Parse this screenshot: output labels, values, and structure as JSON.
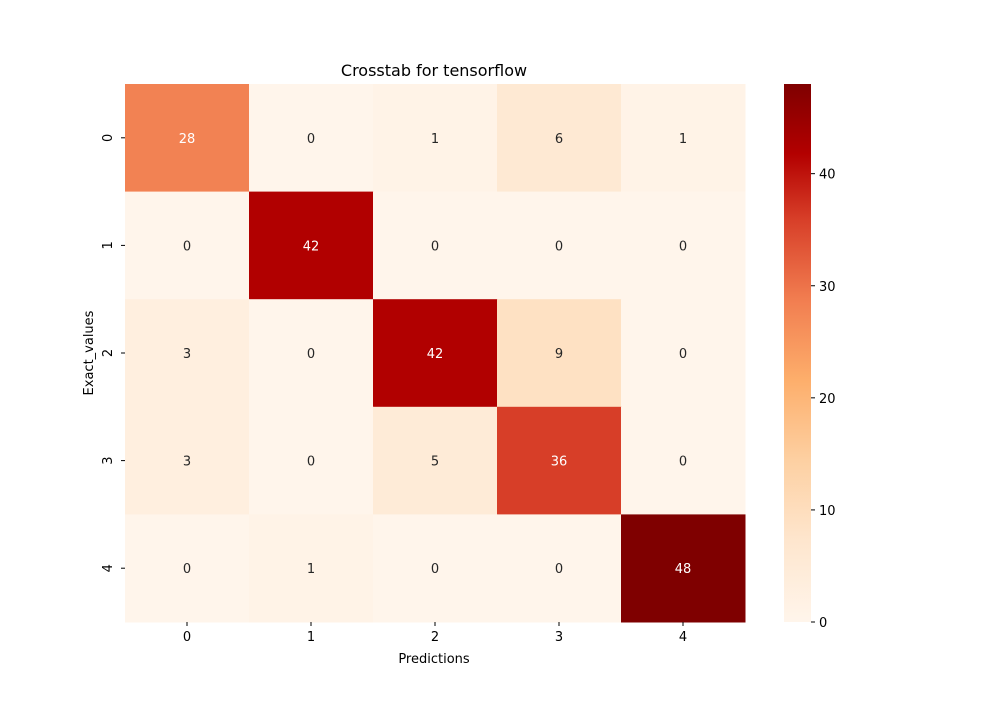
{
  "chart_data": {
    "type": "heatmap",
    "title": "Crosstab for tensorflow",
    "xlabel": "Predictions",
    "ylabel": "Exact_values",
    "x_categories": [
      "0",
      "1",
      "2",
      "3",
      "4"
    ],
    "y_categories": [
      "0",
      "1",
      "2",
      "3",
      "4"
    ],
    "values": [
      [
        28,
        0,
        1,
        6,
        1
      ],
      [
        0,
        42,
        0,
        0,
        0
      ],
      [
        3,
        0,
        42,
        9,
        0
      ],
      [
        3,
        0,
        5,
        36,
        0
      ],
      [
        0,
        1,
        0,
        0,
        48
      ]
    ],
    "colorbar": {
      "min": 0,
      "max": 48,
      "ticks": [
        0,
        10,
        20,
        30,
        40
      ],
      "colormap": "OrRd-like (white-cream to dark red)"
    },
    "grid": false,
    "legend": "colorbar-right"
  }
}
